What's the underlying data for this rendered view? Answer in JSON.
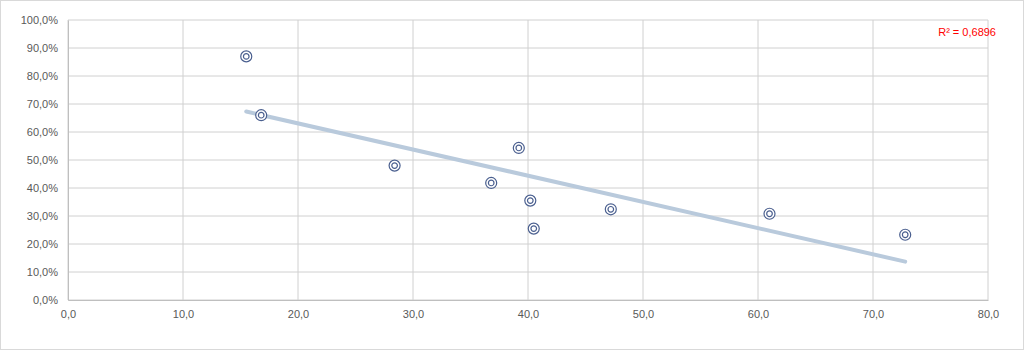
{
  "chart_data": {
    "type": "scatter",
    "series": [
      {
        "type": "scatter",
        "marker": "circle",
        "color": "#4a5f8f",
        "x": [
          15.5,
          16.8,
          28.4,
          36.8,
          39.2,
          40.2,
          40.5,
          47.2,
          61.0,
          72.8
        ],
        "values": [
          87.0,
          66.0,
          48.0,
          41.8,
          54.3,
          35.5,
          25.5,
          32.4,
          30.8,
          23.3
        ]
      },
      {
        "type": "line",
        "line_style": "solid",
        "color": "#b9cadc",
        "x": [
          15.5,
          72.8
        ],
        "values": [
          67.3,
          13.7
        ]
      }
    ],
    "annotations": [
      {
        "text": "R² = 0,6896",
        "color": "#ff0000"
      }
    ],
    "xlim": [
      0,
      80
    ],
    "xticks": [
      {
        "value": 0,
        "label": "0,0"
      },
      {
        "value": 10,
        "label": "10,0"
      },
      {
        "value": 20,
        "label": "20,0"
      },
      {
        "value": 30,
        "label": "30,0"
      },
      {
        "value": 40,
        "label": "40,0"
      },
      {
        "value": 50,
        "label": "50,0"
      },
      {
        "value": 60,
        "label": "60,0"
      },
      {
        "value": 70,
        "label": "70,0"
      },
      {
        "value": 80,
        "label": "80,0"
      }
    ],
    "ylim": [
      0,
      100
    ],
    "yticks": [
      {
        "value": 0,
        "label": "0,0%"
      },
      {
        "value": 10,
        "label": "10,0%"
      },
      {
        "value": 20,
        "label": "20,0%"
      },
      {
        "value": 30,
        "label": "30,0%"
      },
      {
        "value": 40,
        "label": "40,0%"
      },
      {
        "value": 50,
        "label": "50,0%"
      },
      {
        "value": 60,
        "label": "60,0%"
      },
      {
        "value": 70,
        "label": "70,0%"
      },
      {
        "value": 80,
        "label": "80,0%"
      },
      {
        "value": 90,
        "label": "90,0%"
      },
      {
        "value": 100,
        "label": "100,0%"
      }
    ],
    "grid": true
  }
}
